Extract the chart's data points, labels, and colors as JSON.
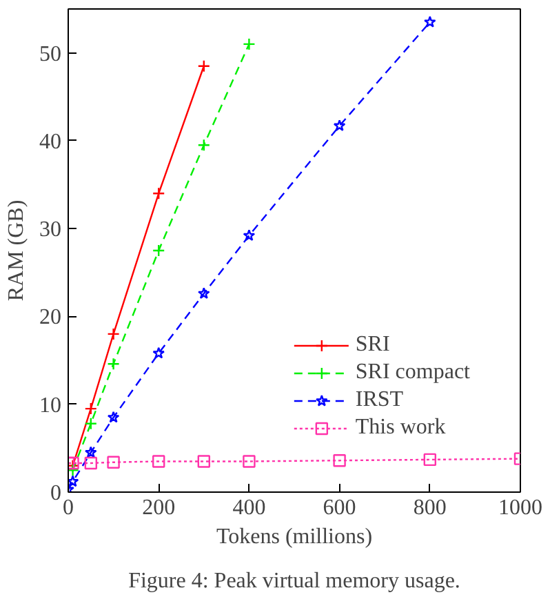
{
  "chart_data": {
    "type": "line",
    "xlabel": "Tokens (millions)",
    "ylabel": "RAM (GB)",
    "xlim": [
      0,
      1000
    ],
    "xticks": [
      0,
      200,
      400,
      600,
      800,
      1000
    ],
    "ylim": [
      0,
      55
    ],
    "yticks": [
      0,
      10,
      20,
      30,
      40,
      50
    ],
    "grid": false,
    "legend": "bottom right",
    "series": [
      {
        "name": "SRI",
        "color": "#ff0000",
        "marker": "cross",
        "line_style": "solid",
        "x": [
          10,
          50,
          100,
          200,
          300
        ],
        "values": [
          3,
          9.5,
          18,
          34,
          48.5
        ]
      },
      {
        "name": "SRI compact",
        "color": "#00ee00",
        "marker": "cross",
        "line_style": "dashed",
        "x": [
          10,
          50,
          100,
          200,
          300,
          400
        ],
        "values": [
          2.5,
          7.8,
          14.6,
          27.5,
          39.5,
          51
        ]
      },
      {
        "name": "IRST",
        "color": "#0000ff",
        "marker": "star",
        "line_style": "dashed",
        "x": [
          0,
          10,
          50,
          100,
          200,
          300,
          400,
          600,
          800
        ],
        "values": [
          0.3,
          1.2,
          4.5,
          8.5,
          15.8,
          22.6,
          29.2,
          41.7,
          53.5
        ]
      },
      {
        "name": "This work",
        "color": "#ff33aa",
        "marker": "square",
        "line_style": "dotted",
        "x": [
          0,
          10,
          50,
          100,
          200,
          300,
          400,
          600,
          800,
          1000
        ],
        "values": [
          3.3,
          3.3,
          3.3,
          3.4,
          3.5,
          3.5,
          3.5,
          3.6,
          3.7,
          3.8
        ]
      }
    ],
    "annotations": [
      "Figure 4: Peak virtual memory usage."
    ]
  }
}
